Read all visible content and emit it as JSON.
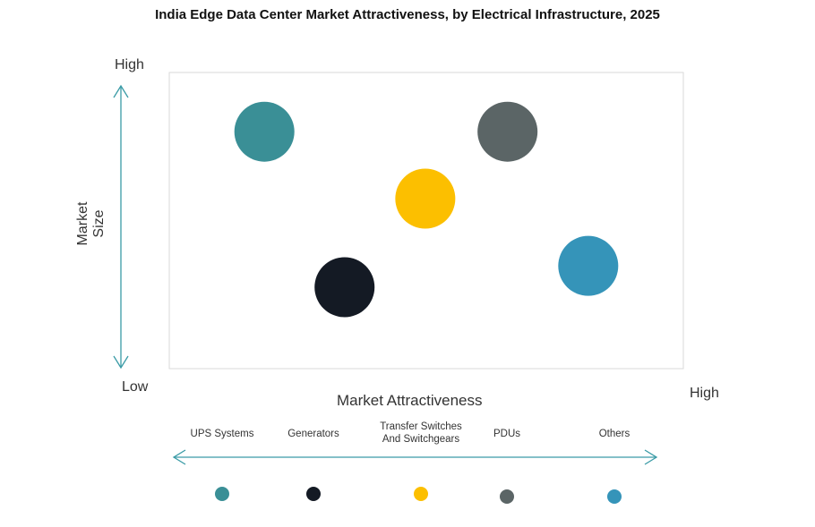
{
  "chart_data": {
    "type": "scatter",
    "title": "India Edge Data Center Market Attractiveness,  by Electrical Infrastructure,  2025",
    "xlabel": "Market Attractiveness",
    "ylabel": "Market Size",
    "x_low_label": "Low",
    "x_high_label": "High",
    "y_high_label": "High",
    "xlim": [
      0,
      1
    ],
    "ylim": [
      0,
      1
    ],
    "grid": false,
    "legend_position": "bottom",
    "series": [
      {
        "name": "UPS Systems",
        "x": 0.185,
        "y": 0.8,
        "color": "#3a8f96"
      },
      {
        "name": "Generators",
        "x": 0.341,
        "y": 0.275,
        "color": "#141a24"
      },
      {
        "name": "Transfer Switches And Switchgears",
        "x": 0.498,
        "y": 0.574,
        "color": "#fcbf00"
      },
      {
        "name": "PDUs",
        "x": 0.658,
        "y": 0.8,
        "color": "#5b6566"
      },
      {
        "name": "Others",
        "x": 0.815,
        "y": 0.347,
        "color": "#3594b9"
      }
    ]
  }
}
